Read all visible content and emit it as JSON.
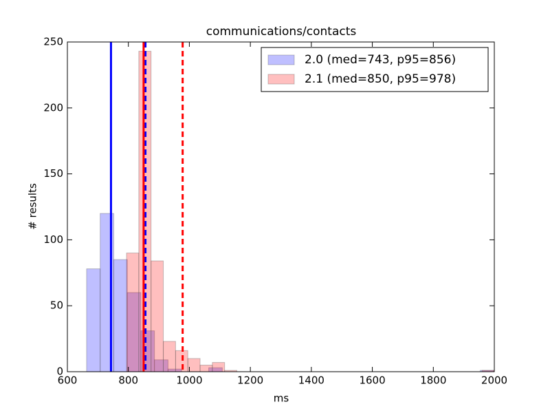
{
  "chart_data": {
    "type": "histogram",
    "title": "communications/contacts",
    "x_label": "ms",
    "y_label": "# results",
    "xlim": [
      600,
      2000
    ],
    "xticks": [
      600,
      800,
      1000,
      1200,
      1400,
      1600,
      1800,
      2000
    ],
    "ylim": [
      0,
      250
    ],
    "yticks": [
      0,
      50,
      100,
      150,
      200,
      250
    ],
    "grid": false,
    "legend": "upper right",
    "series": [
      {
        "name": "2.0 (med=743, p95=856)",
        "color": "#0000ff",
        "bins": [
          663,
          707.5,
          752,
          796.5,
          841,
          885.5,
          930,
          974.5,
          1019,
          1063.5,
          1108,
          1152.5,
          1197,
          1241.5,
          1286,
          1330.5,
          1375,
          1419.5,
          1464,
          1508.5,
          1553,
          1597.5,
          1642,
          1686.5,
          1731,
          1775.5,
          1820,
          1864.5,
          1909,
          1953.5,
          1998
        ],
        "values": [
          78,
          120,
          85,
          60,
          31,
          9,
          2,
          0,
          0,
          3,
          0,
          0,
          0,
          0,
          0,
          0,
          0,
          0,
          0,
          0,
          0,
          0,
          0,
          0,
          0,
          0,
          0,
          0,
          0,
          1
        ]
      },
      {
        "name": "2.1 (med=850, p95=978)",
        "color": "#ff0000",
        "bins": [
          794,
          834.2,
          874.4,
          914.6,
          954.8,
          995,
          1035.2,
          1075.4,
          1115.6,
          1155.8,
          1196,
          1236.2,
          1276.4,
          1316.6,
          1356.8,
          1397,
          1437.2,
          1477.4,
          1517.6,
          1557.8,
          1598,
          1638.2,
          1678.4,
          1718.6,
          1758.8,
          1799,
          1839.2,
          1879.4,
          1919.6,
          1959.8,
          2000
        ],
        "values": [
          90,
          243,
          84,
          23,
          16,
          10,
          5,
          7,
          1,
          0,
          0,
          0,
          0,
          0,
          0,
          0,
          0,
          0,
          0,
          0,
          0,
          0,
          0,
          0,
          0,
          0,
          0,
          0,
          0,
          1
        ]
      }
    ],
    "vlines": [
      {
        "value": 743,
        "color": "#0000ff",
        "style": "solid"
      },
      {
        "value": 856,
        "color": "#0000ff",
        "style": "dashed"
      },
      {
        "value": 850,
        "color": "#ff0000",
        "style": "solid"
      },
      {
        "value": 978,
        "color": "#ff0000",
        "style": "dashed"
      }
    ]
  }
}
